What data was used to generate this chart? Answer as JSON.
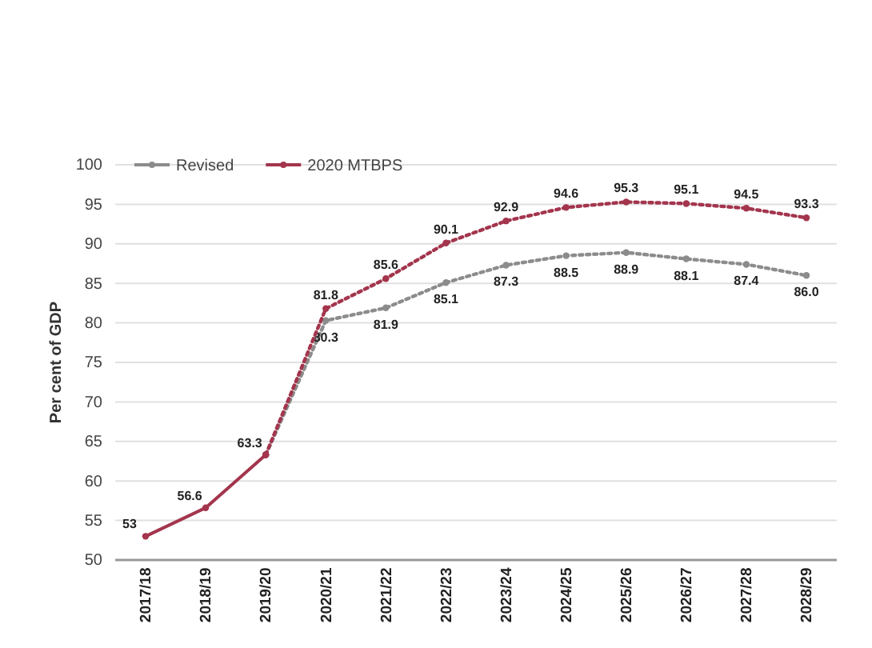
{
  "chart_data": {
    "type": "line",
    "ylabel": "Per cent of GDP",
    "categories": [
      "2017/18",
      "2018/19",
      "2019/20",
      "2020/21",
      "2021/22",
      "2022/23",
      "2023/24",
      "2024/25",
      "2025/26",
      "2026/27",
      "2027/28",
      "2028/29"
    ],
    "series": [
      {
        "name": "Revised",
        "color": "#8c8c8c",
        "line_style": "dotted",
        "values": [
          null,
          null,
          63.3,
          80.3,
          81.9,
          85.1,
          87.3,
          88.5,
          88.9,
          88.1,
          87.4,
          86.0
        ],
        "value_labels": [
          null,
          null,
          null,
          "80.3",
          "81.9",
          "85.1",
          "87.3",
          "88.5",
          "88.9",
          "88.1",
          "87.4",
          "86.0"
        ]
      },
      {
        "name": "2020 MTBPS",
        "color": "#a3354d",
        "line_style": "dotted",
        "values": [
          null,
          null,
          63.3,
          81.8,
          85.6,
          90.1,
          92.9,
          94.6,
          95.3,
          95.1,
          94.5,
          93.3
        ],
        "value_labels": [
          null,
          null,
          null,
          "81.8",
          "85.6",
          "90.1",
          "92.9",
          "94.6",
          "95.3",
          "95.1",
          "94.5",
          "93.3"
        ]
      },
      {
        "color": "#a3354d",
        "line_style": "solid",
        "values": [
          53.0,
          56.6,
          63.3,
          null,
          null,
          null,
          null,
          null,
          null,
          null,
          null,
          null
        ],
        "value_labels": [
          "53",
          "56.6",
          "63.3",
          null,
          null,
          null,
          null,
          null,
          null,
          null,
          null,
          null
        ]
      }
    ],
    "ylim": [
      50,
      100
    ],
    "yticks": [
      50,
      55,
      60,
      65,
      70,
      75,
      80,
      85,
      90,
      95,
      100
    ],
    "grid": "y",
    "legend": "top left",
    "marker": "circle"
  }
}
